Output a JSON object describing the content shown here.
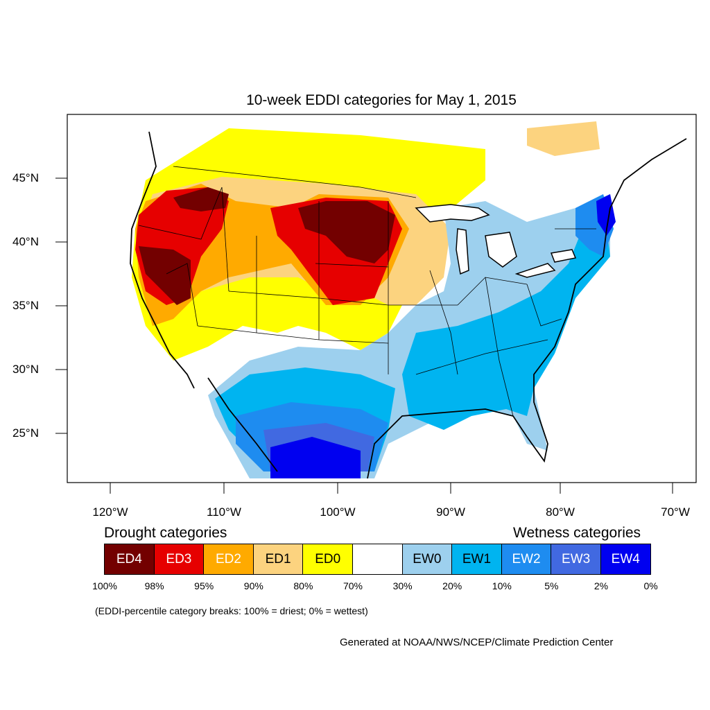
{
  "title": "10-week EDDI categories for May 1, 2015",
  "lat_labels": [
    "45°N",
    "40°N",
    "35°N",
    "30°N",
    "25°N"
  ],
  "lon_labels": [
    "120°W",
    "110°W",
    "100°W",
    "90°W",
    "80°W",
    "70°W"
  ],
  "legend": {
    "drought_heading": "Drought categories",
    "wetness_heading": "Wetness categories",
    "categories": [
      {
        "label": "ED4",
        "color": "#730000",
        "text_color": "#ffffff"
      },
      {
        "label": "ED3",
        "color": "#e60000",
        "text_color": "#ffffff"
      },
      {
        "label": "ED2",
        "color": "#ffaa00",
        "text_color": "#ffffff"
      },
      {
        "label": "ED1",
        "color": "#fcd37f",
        "text_color": "#000000"
      },
      {
        "label": "ED0",
        "color": "#ffff00",
        "text_color": "#000000"
      },
      {
        "label": "",
        "color": "#ffffff",
        "text_color": "#000000"
      },
      {
        "label": "EW0",
        "color": "#9dd0ee",
        "text_color": "#000000"
      },
      {
        "label": "EW1",
        "color": "#00b4f0",
        "text_color": "#000000"
      },
      {
        "label": "EW2",
        "color": "#1e8cf0",
        "text_color": "#ffffff"
      },
      {
        "label": "EW3",
        "color": "#4169e1",
        "text_color": "#ffffff"
      },
      {
        "label": "EW4",
        "color": "#0000f0",
        "text_color": "#ffffff"
      }
    ],
    "breaks": [
      "100%",
      "98%",
      "95%",
      "90%",
      "80%",
      "70%",
      "30%",
      "20%",
      "10%",
      "5%",
      "2%",
      "0%"
    ]
  },
  "note": "(EDDI-percentile category breaks: 100% = driest; 0% = wettest)",
  "credit": "Generated at NOAA/NWS/NCEP/Climate Prediction Center"
}
